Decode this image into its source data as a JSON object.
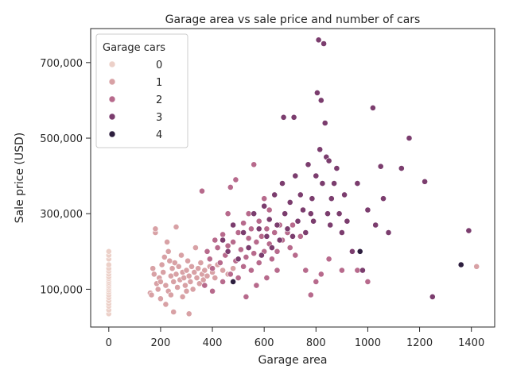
{
  "chart_data": {
    "type": "scatter",
    "title": "Garage area vs sale price and number of cars",
    "xlabel": "Garage area",
    "ylabel": "Sale price (USD)",
    "xlim": [
      -70,
      1490
    ],
    "ylim": [
      0,
      790000
    ],
    "xticks": [
      0,
      200,
      400,
      600,
      800,
      1000,
      1200,
      1400
    ],
    "xtick_labels": [
      "0",
      "200",
      "400",
      "600",
      "800",
      "1000",
      "1200",
      "1400"
    ],
    "yticks": [
      100000,
      300000,
      500000,
      700000
    ],
    "ytick_labels": [
      "100,000",
      "300,000",
      "500,000",
      "700,000"
    ],
    "grid": false,
    "legend": {
      "title": "Garage cars",
      "placement": "top-left",
      "entries": [
        "0",
        "1",
        "2",
        "3",
        "4"
      ]
    },
    "series": [
      {
        "name": "0",
        "color": "#ecd0c8",
        "points": [
          [
            0,
            35000
          ],
          [
            0,
            45000
          ],
          [
            0,
            55000
          ],
          [
            0,
            62000
          ],
          [
            0,
            70000
          ],
          [
            0,
            78000
          ],
          [
            0,
            85000
          ],
          [
            0,
            92000
          ],
          [
            0,
            98000
          ],
          [
            0,
            103000
          ],
          [
            0,
            108000
          ],
          [
            0,
            113000
          ],
          [
            0,
            118000
          ],
          [
            0,
            123000
          ],
          [
            0,
            128000
          ],
          [
            0,
            133000
          ],
          [
            0,
            140000
          ],
          [
            0,
            148000
          ],
          [
            0,
            155000
          ],
          [
            0,
            165000
          ],
          [
            0,
            180000
          ],
          [
            0,
            190000
          ],
          [
            0,
            200000
          ]
        ]
      },
      {
        "name": "1",
        "color": "#d8a1a5",
        "points": [
          [
            160,
            90000
          ],
          [
            165,
            85000
          ],
          [
            170,
            155000
          ],
          [
            175,
            140000
          ],
          [
            180,
            250000
          ],
          [
            180,
            260000
          ],
          [
            185,
            115000
          ],
          [
            190,
            100000
          ],
          [
            195,
            130000
          ],
          [
            200,
            120000
          ],
          [
            200,
            75000
          ],
          [
            205,
            165000
          ],
          [
            210,
            145000
          ],
          [
            215,
            185000
          ],
          [
            220,
            110000
          ],
          [
            220,
            60000
          ],
          [
            225,
            225000
          ],
          [
            230,
            200000
          ],
          [
            230,
            95000
          ],
          [
            235,
            175000
          ],
          [
            240,
            135000
          ],
          [
            240,
            85000
          ],
          [
            245,
            155000
          ],
          [
            250,
            120000
          ],
          [
            250,
            40000
          ],
          [
            255,
            170000
          ],
          [
            260,
            140000
          ],
          [
            260,
            265000
          ],
          [
            265,
            105000
          ],
          [
            270,
            160000
          ],
          [
            275,
            125000
          ],
          [
            280,
            190000
          ],
          [
            285,
            145000
          ],
          [
            285,
            80000
          ],
          [
            290,
            130000
          ],
          [
            295,
            110000
          ],
          [
            300,
            150000
          ],
          [
            300,
            95000
          ],
          [
            305,
            175000
          ],
          [
            310,
            135000
          ],
          [
            310,
            35000
          ],
          [
            315,
            120000
          ],
          [
            320,
            160000
          ],
          [
            325,
            100000
          ],
          [
            330,
            145000
          ],
          [
            335,
            210000
          ],
          [
            340,
            130000
          ],
          [
            345,
            155000
          ],
          [
            350,
            115000
          ],
          [
            355,
            170000
          ],
          [
            360,
            140000
          ],
          [
            365,
            125000
          ],
          [
            370,
            150000
          ],
          [
            380,
            135000
          ],
          [
            390,
            160000
          ],
          [
            400,
            145000
          ],
          [
            410,
            130000
          ],
          [
            420,
            165000
          ],
          [
            440,
            150000
          ],
          [
            460,
            140000
          ],
          [
            480,
            155000
          ],
          [
            1420,
            160000
          ]
        ]
      },
      {
        "name": "2",
        "color": "#b76a8c",
        "points": [
          [
            360,
            360000
          ],
          [
            370,
            110000
          ],
          [
            380,
            200000
          ],
          [
            390,
            180000
          ],
          [
            400,
            155000
          ],
          [
            400,
            95000
          ],
          [
            410,
            230000
          ],
          [
            420,
            210000
          ],
          [
            430,
            170000
          ],
          [
            440,
            245000
          ],
          [
            440,
            120000
          ],
          [
            450,
            190000
          ],
          [
            460,
            215000
          ],
          [
            460,
            300000
          ],
          [
            470,
            140000
          ],
          [
            470,
            370000
          ],
          [
            480,
            225000
          ],
          [
            490,
            175000
          ],
          [
            490,
            390000
          ],
          [
            500,
            250000
          ],
          [
            500,
            130000
          ],
          [
            510,
            205000
          ],
          [
            520,
            275000
          ],
          [
            520,
            160000
          ],
          [
            530,
            185000
          ],
          [
            530,
            80000
          ],
          [
            540,
            235000
          ],
          [
            540,
            300000
          ],
          [
            550,
            260000
          ],
          [
            550,
            150000
          ],
          [
            560,
            195000
          ],
          [
            560,
            430000
          ],
          [
            570,
            225000
          ],
          [
            570,
            110000
          ],
          [
            580,
            280000
          ],
          [
            580,
            170000
          ],
          [
            590,
            240000
          ],
          [
            600,
            200000
          ],
          [
            600,
            340000
          ],
          [
            610,
            260000
          ],
          [
            610,
            130000
          ],
          [
            620,
            220000
          ],
          [
            620,
            310000
          ],
          [
            630,
            180000
          ],
          [
            640,
            250000
          ],
          [
            650,
            200000
          ],
          [
            650,
            150000
          ],
          [
            660,
            270000
          ],
          [
            670,
            230000
          ],
          [
            680,
            300000
          ],
          [
            690,
            250000
          ],
          [
            700,
            210000
          ],
          [
            710,
            270000
          ],
          [
            720,
            190000
          ],
          [
            740,
            240000
          ],
          [
            760,
            150000
          ],
          [
            780,
            85000
          ],
          [
            800,
            120000
          ],
          [
            820,
            140000
          ],
          [
            850,
            180000
          ],
          [
            900,
            150000
          ],
          [
            960,
            150000
          ],
          [
            1000,
            120000
          ]
        ]
      },
      {
        "name": "3",
        "color": "#7b3d6e",
        "points": [
          [
            440,
            230000
          ],
          [
            460,
            200000
          ],
          [
            480,
            270000
          ],
          [
            500,
            180000
          ],
          [
            520,
            250000
          ],
          [
            540,
            210000
          ],
          [
            560,
            300000
          ],
          [
            580,
            260000
          ],
          [
            590,
            190000
          ],
          [
            600,
            320000
          ],
          [
            610,
            240000
          ],
          [
            620,
            285000
          ],
          [
            630,
            210000
          ],
          [
            640,
            350000
          ],
          [
            650,
            270000
          ],
          [
            660,
            230000
          ],
          [
            670,
            380000
          ],
          [
            675,
            555000
          ],
          [
            680,
            300000
          ],
          [
            690,
            260000
          ],
          [
            700,
            330000
          ],
          [
            710,
            240000
          ],
          [
            715,
            555000
          ],
          [
            720,
            400000
          ],
          [
            730,
            280000
          ],
          [
            740,
            350000
          ],
          [
            750,
            310000
          ],
          [
            760,
            250000
          ],
          [
            770,
            430000
          ],
          [
            780,
            300000
          ],
          [
            785,
            340000
          ],
          [
            790,
            280000
          ],
          [
            800,
            400000
          ],
          [
            805,
            620000
          ],
          [
            810,
            760000
          ],
          [
            815,
            470000
          ],
          [
            820,
            600000
          ],
          [
            825,
            380000
          ],
          [
            830,
            750000
          ],
          [
            835,
            540000
          ],
          [
            840,
            450000
          ],
          [
            845,
            300000
          ],
          [
            850,
            440000
          ],
          [
            855,
            270000
          ],
          [
            860,
            340000
          ],
          [
            870,
            380000
          ],
          [
            880,
            420000
          ],
          [
            890,
            300000
          ],
          [
            900,
            250000
          ],
          [
            910,
            350000
          ],
          [
            920,
            280000
          ],
          [
            940,
            200000
          ],
          [
            960,
            380000
          ],
          [
            980,
            150000
          ],
          [
            1000,
            310000
          ],
          [
            1020,
            580000
          ],
          [
            1030,
            270000
          ],
          [
            1050,
            425000
          ],
          [
            1060,
            340000
          ],
          [
            1080,
            250000
          ],
          [
            1130,
            420000
          ],
          [
            1160,
            500000
          ],
          [
            1220,
            385000
          ],
          [
            1250,
            80000
          ],
          [
            1390,
            255000
          ]
        ]
      },
      {
        "name": "4",
        "color": "#2d1e3e",
        "points": [
          [
            480,
            120000
          ],
          [
            970,
            200000
          ],
          [
            1360,
            165000
          ]
        ]
      }
    ]
  }
}
